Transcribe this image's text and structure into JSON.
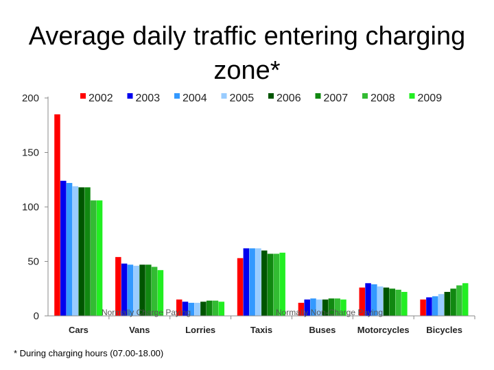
{
  "title": "Average daily traffic entering charging zone*",
  "footnote": "* During charging hours (07.00-18.00)",
  "chart_data": {
    "type": "bar",
    "title": "Average daily traffic entering charging zone*",
    "xlabel": "",
    "ylabel": "",
    "ylim": [
      0,
      200
    ],
    "yticks": [
      0,
      50,
      100,
      150,
      200
    ],
    "grid": false,
    "legend_position": "top",
    "categories": [
      "Cars",
      "Vans",
      "Lorries",
      "Taxis",
      "Buses",
      "Motorcycles",
      "Bicycles"
    ],
    "group_labels": [
      "Normally Charge Paying",
      "Normally Non-Charge Paying"
    ],
    "series": [
      {
        "name": "2002",
        "color": "#ff0000",
        "values": [
          185,
          54,
          15,
          53,
          12,
          26,
          15
        ]
      },
      {
        "name": "2003",
        "color": "#0000ee",
        "values": [
          124,
          48,
          13,
          62,
          15,
          30,
          17
        ]
      },
      {
        "name": "2004",
        "color": "#3399ff",
        "values": [
          122,
          47,
          12,
          62,
          16,
          29,
          18
        ]
      },
      {
        "name": "2005",
        "color": "#99ccff",
        "values": [
          119,
          46,
          12,
          62,
          15,
          27,
          20
        ]
      },
      {
        "name": "2006",
        "color": "#005500",
        "values": [
          118,
          47,
          13,
          60,
          15,
          26,
          22
        ]
      },
      {
        "name": "2007",
        "color": "#118811",
        "values": [
          118,
          47,
          14,
          57,
          16,
          25,
          25
        ]
      },
      {
        "name": "2008",
        "color": "#33bb33",
        "values": [
          106,
          45,
          14,
          57,
          16,
          24,
          28
        ]
      },
      {
        "name": "2009",
        "color": "#22ee22",
        "values": [
          106,
          42,
          13,
          58,
          15,
          22,
          30
        ]
      }
    ]
  }
}
